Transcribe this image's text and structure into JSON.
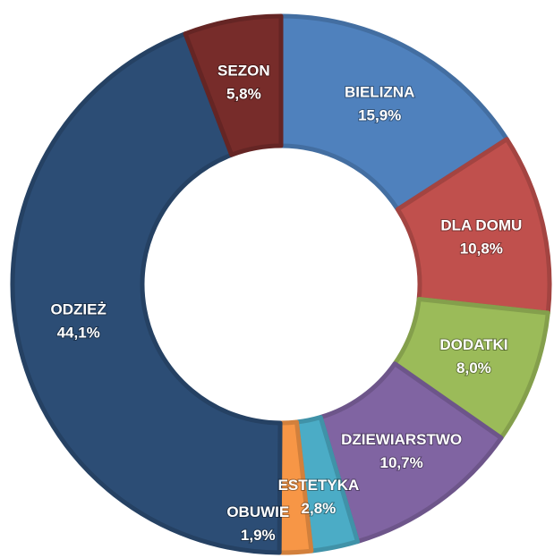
{
  "chart_data": {
    "type": "donut",
    "categories": [
      "BIELIZNA",
      "DLA DOMU",
      "DODATKI",
      "DZIEWIARSTWO",
      "ESTETYKA",
      "OBUWIE",
      "ODZIEŻ",
      "SEZON"
    ],
    "values": [
      15.9,
      10.8,
      8.0,
      10.7,
      2.8,
      1.9,
      44.1,
      5.8
    ],
    "value_labels": [
      "15,9%",
      "10,8%",
      "8,0%",
      "10,7%",
      "2,8%",
      "1,9%",
      "44,1%",
      "5,8%"
    ],
    "colors": [
      "#4f81bd",
      "#c0504d",
      "#9bbb59",
      "#8064a2",
      "#4bacc6",
      "#f79646",
      "#2c4d75",
      "#772c2a"
    ]
  }
}
